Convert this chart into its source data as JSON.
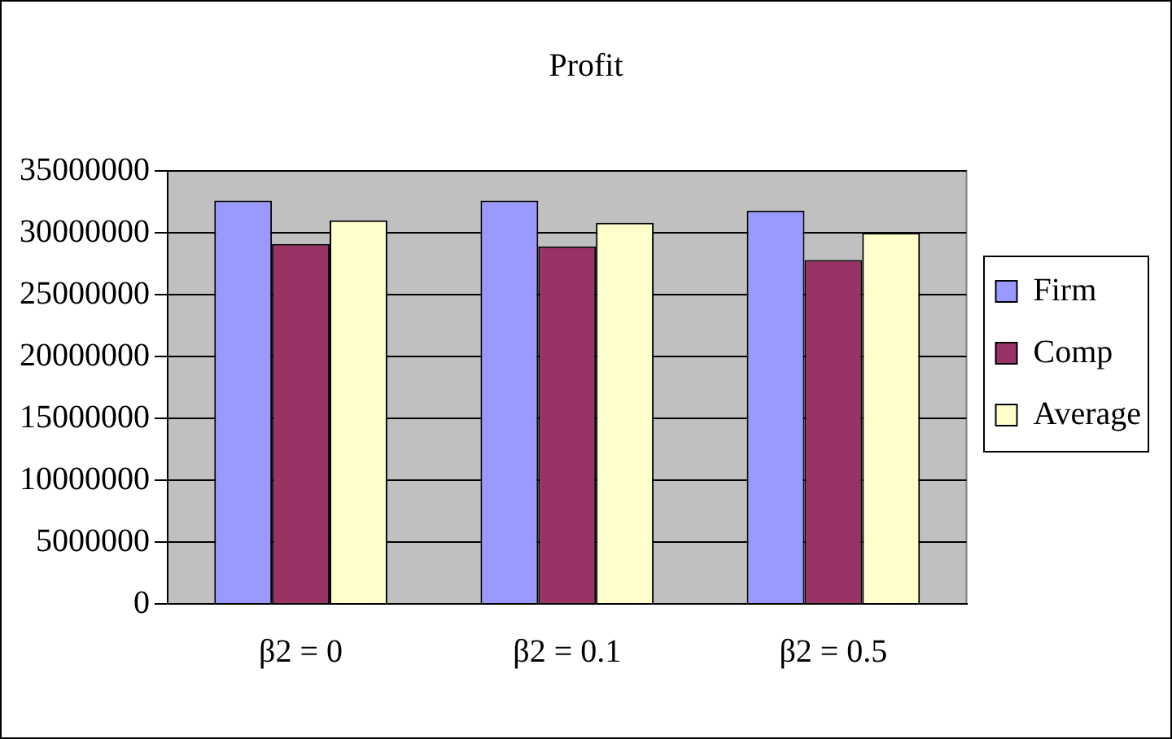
{
  "chart_data": {
    "type": "bar",
    "title": "Profit",
    "categories": [
      "β2 = 0",
      "β2 = 0.1",
      "β2 = 0.5"
    ],
    "series": [
      {
        "name": "Firm",
        "color": "#9999ff",
        "values": [
          32600000,
          32600000,
          31800000
        ]
      },
      {
        "name": "Comp",
        "color": "#993366",
        "values": [
          29100000,
          28900000,
          27800000
        ]
      },
      {
        "name": "Average",
        "color": "#ffffcc",
        "values": [
          31000000,
          30800000,
          30000000
        ]
      }
    ],
    "ylim": [
      0,
      35000000
    ],
    "yticks": [
      0,
      5000000,
      10000000,
      15000000,
      20000000,
      25000000,
      30000000,
      35000000
    ],
    "grid": "y",
    "legend": "right"
  }
}
